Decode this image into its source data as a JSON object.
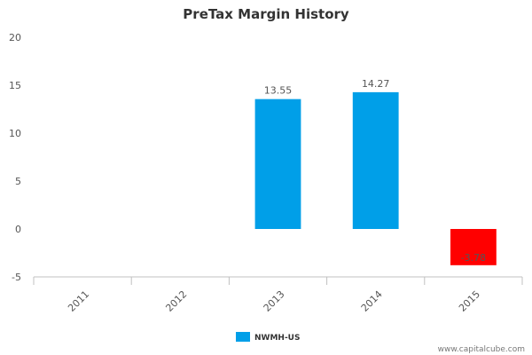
{
  "chart_data": {
    "type": "bar",
    "title": "PreTax Margin History",
    "xlabel": "",
    "ylabel": "",
    "categories": [
      "2011",
      "2012",
      "2013",
      "2014",
      "2015"
    ],
    "series": [
      {
        "name": "NWMH-US",
        "values": [
          null,
          null,
          13.55,
          14.27,
          -3.78
        ],
        "data_labels": [
          "",
          "",
          "13.55",
          "14.27",
          "-3.78"
        ],
        "color": "#009FE8",
        "negative_color": "#FF0000"
      }
    ],
    "ylim": [
      -5,
      20
    ],
    "yticks": [
      "-5",
      "0",
      "5",
      "10",
      "15",
      "20"
    ],
    "grid": false,
    "legend_position": "bottom-center"
  },
  "credit": "www.capitalcube.com"
}
